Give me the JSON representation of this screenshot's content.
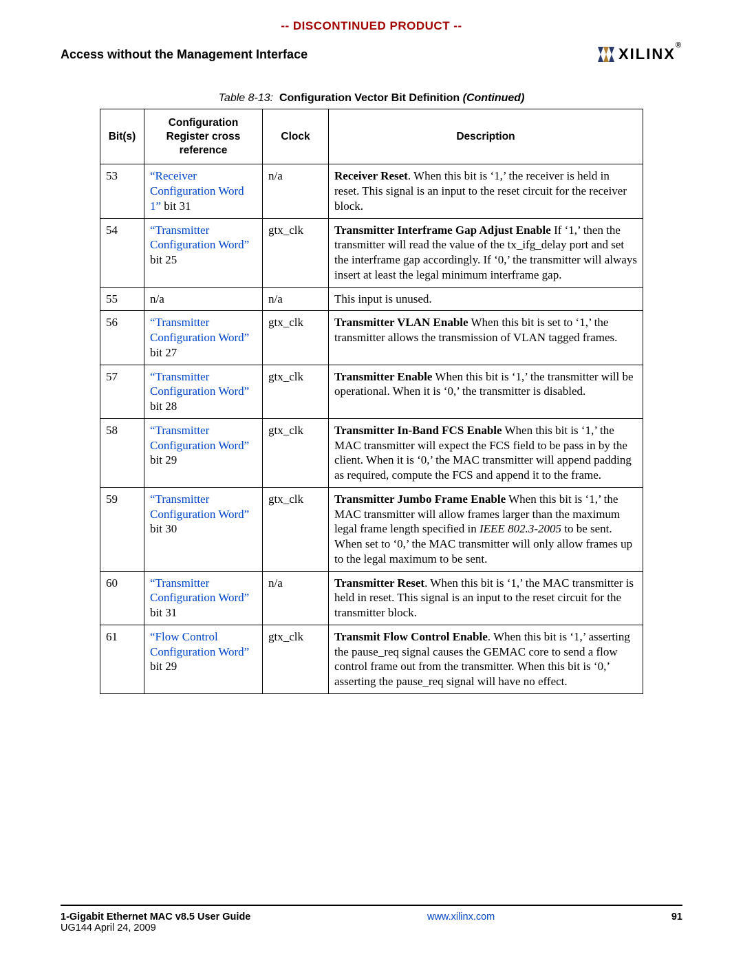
{
  "banner": "-- DISCONTINUED PRODUCT --",
  "section_title": "Access without the Management Interface",
  "logo_text": "XILINX",
  "caption": {
    "prefix": "Table 8-13:",
    "title": "Configuration Vector Bit Definition",
    "suffix": "(Continued)"
  },
  "columns": {
    "c1": "Bit(s)",
    "c2": "Configuration Register cross reference",
    "c3": "Clock",
    "c4": "Description"
  },
  "rows": [
    {
      "bit": "53",
      "ref_link": "“Receiver Configuration Word 1”",
      "ref_tail": " bit 31",
      "clock": "n/a",
      "desc": "<b>Receiver Reset</b>. When this bit is ‘1,’ the receiver is held in reset. This signal is an input to the reset circuit for the receiver block."
    },
    {
      "bit": "54",
      "ref_link": "“Transmitter Configuration Word”",
      "ref_tail": " bit 25",
      "clock": "gtx_clk",
      "desc": "<b>Transmitter Interframe Gap Adjust Enable</b> If ‘1,’ then the transmitter will read the value of the tx_ifg_delay port and set the interframe gap accordingly. If ‘0,’ the transmitter will always insert at least the legal minimum interframe gap."
    },
    {
      "bit": "55",
      "ref_plain": "n/a",
      "clock": "n/a",
      "desc": "This input is unused."
    },
    {
      "bit": "56",
      "ref_link": "“Transmitter Configuration Word”",
      "ref_tail": " bit 27",
      "clock": "gtx_clk",
      "desc": "<b>Transmitter VLAN Enable</b> When this bit is set to ‘1,’ the transmitter allows the transmission of VLAN tagged frames."
    },
    {
      "bit": "57",
      "ref_link": "“Transmitter Configuration Word”",
      "ref_tail": " bit 28",
      "clock": "gtx_clk",
      "desc": "<b>Transmitter Enable</b> When this bit is ‘1,’ the transmitter will be operational. When it is ‘0,’ the transmitter is disabled."
    },
    {
      "bit": "58",
      "ref_link": "“Transmitter Configuration Word”",
      "ref_tail": " bit 29",
      "clock": "gtx_clk",
      "desc": "<b>Transmitter In-Band FCS Enable</b> When this bit is ‘1,’ the MAC transmitter will expect the FCS field to be pass in by the client. When it is ‘0,’ the MAC transmitter will append padding as required, compute the FCS and append it to the frame."
    },
    {
      "bit": "59",
      "ref_link": "“Transmitter Configuration Word”",
      "ref_tail": " bit 30",
      "clock": "gtx_clk",
      "desc": "<b>Transmitter Jumbo Frame Enable</b> When this bit is ‘1,’ the MAC transmitter will allow frames larger than the maximum legal frame length specified in <span class=\"italic\">IEEE 802.3-2005</span> to be sent. When set to ‘0,’ the MAC transmitter will only allow frames up to the legal maximum to be sent."
    },
    {
      "bit": "60",
      "ref_link": "“Transmitter Configuration Word”",
      "ref_tail": " bit 31",
      "clock": "n/a",
      "desc": "<b>Transmitter Reset</b>. When this bit is ‘1,’ the MAC transmitter is held in reset. This signal is an input to the reset circuit for the transmitter block."
    },
    {
      "bit": "61",
      "ref_link": "“Flow Control Configuration Word”",
      "ref_tail": " bit 29",
      "clock": "gtx_clk",
      "desc": "<b>Transmit Flow Control Enable</b>. When this bit is ‘1,’ asserting the pause_req signal causes the GEMAC core to send a flow control frame out from the transmitter. When this bit is ‘0,’ asserting the pause_req signal will have no effect."
    }
  ],
  "footer": {
    "doc_title": "1-Gigabit Ethernet MAC v8.5 User Guide",
    "doc_id": "UG144 April 24, 2009",
    "url": "www.xilinx.com",
    "page": "91"
  }
}
